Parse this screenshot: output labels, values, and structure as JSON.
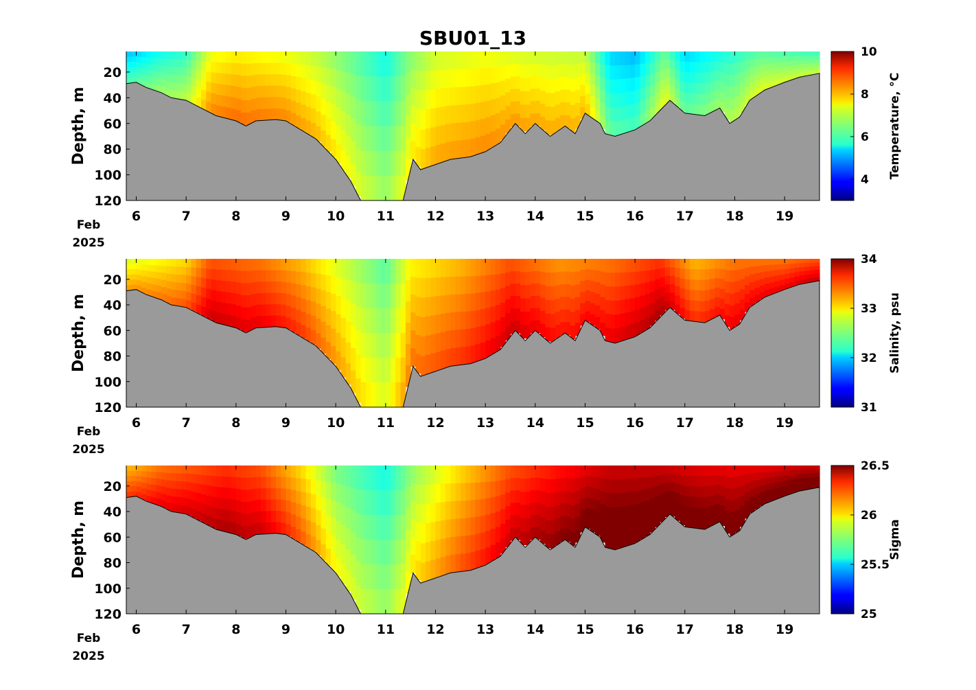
{
  "title": "SBU01_13",
  "colors": {
    "bathymetry": "#9a9a9a",
    "colormap": "jet",
    "gap": "#ffffff"
  },
  "date_label": {
    "month": "Feb",
    "year": "2025"
  },
  "chart_data": [
    {
      "type": "heatmap",
      "variable": "temperature",
      "ylabel": "Depth, m",
      "colorbar_label": "Temperature, °C",
      "x_ticks": [
        "6",
        "7",
        "8",
        "9",
        "10",
        "11",
        "12",
        "13",
        "14",
        "15",
        "16",
        "17",
        "18",
        "19"
      ],
      "y_ticks": [
        "20",
        "40",
        "60",
        "80",
        "100",
        "120"
      ],
      "colorbar_ticks": [
        "4",
        "6",
        "8",
        "10"
      ],
      "xlim": [
        5.8,
        19.7
      ],
      "ylim": [
        120,
        4
      ],
      "clim": [
        3,
        10
      ],
      "data_bins": [
        {
          "day": 5.9,
          "value": 5.3
        },
        {
          "day": 6.5,
          "value": 5.8
        },
        {
          "day": 7.0,
          "value": 6.0
        },
        {
          "day": 7.5,
          "value": 7.3
        },
        {
          "day": 8.0,
          "value": 7.5
        },
        {
          "day": 9.0,
          "value": 7.3
        },
        {
          "day": 9.6,
          "value": 7.0
        },
        {
          "day": 10.3,
          "value": 6.4
        },
        {
          "day": 11.0,
          "value": 5.8
        },
        {
          "day": 11.5,
          "value": 6.6
        },
        {
          "day": 12.0,
          "value": 7.1
        },
        {
          "day": 13.0,
          "value": 7.3
        },
        {
          "day": 14.0,
          "value": 7.1
        },
        {
          "day": 15.0,
          "value": 7.0
        },
        {
          "day": 15.5,
          "value": 5.4
        },
        {
          "day": 16.0,
          "value": 5.2
        },
        {
          "day": 16.6,
          "value": 6.4
        },
        {
          "day": 17.0,
          "value": 5.4
        },
        {
          "day": 17.5,
          "value": 5.7
        },
        {
          "day": 18.5,
          "value": 6.3
        },
        {
          "day": 19.5,
          "value": 6.1
        }
      ]
    },
    {
      "type": "heatmap",
      "variable": "salinity",
      "ylabel": "Depth, m",
      "colorbar_label": "Salinity, psu",
      "x_ticks": [
        "6",
        "7",
        "8",
        "9",
        "10",
        "11",
        "12",
        "13",
        "14",
        "15",
        "16",
        "17",
        "18",
        "19"
      ],
      "y_ticks": [
        "20",
        "40",
        "60",
        "80",
        "100",
        "120"
      ],
      "colorbar_ticks": [
        "31",
        "32",
        "33",
        "34"
      ],
      "xlim": [
        5.8,
        19.7
      ],
      "ylim": [
        120,
        4
      ],
      "clim": [
        31,
        34
      ],
      "data_bins": [
        {
          "day": 5.9,
          "value": 32.8
        },
        {
          "day": 6.5,
          "value": 32.9
        },
        {
          "day": 7.0,
          "value": 33.0
        },
        {
          "day": 7.5,
          "value": 33.4
        },
        {
          "day": 8.5,
          "value": 33.3
        },
        {
          "day": 9.3,
          "value": 33.1
        },
        {
          "day": 10.0,
          "value": 32.8
        },
        {
          "day": 11.0,
          "value": 32.4
        },
        {
          "day": 11.5,
          "value": 32.9
        },
        {
          "day": 12.5,
          "value": 33.1
        },
        {
          "day": 13.5,
          "value": 33.4
        },
        {
          "day": 14.5,
          "value": 33.2
        },
        {
          "day": 15.5,
          "value": 33.3
        },
        {
          "day": 16.5,
          "value": 33.5
        },
        {
          "day": 17.2,
          "value": 33.1
        },
        {
          "day": 18.0,
          "value": 33.3
        },
        {
          "day": 19.0,
          "value": 33.3
        },
        {
          "day": 19.6,
          "value": 33.4
        }
      ]
    },
    {
      "type": "heatmap",
      "variable": "sigma",
      "ylabel": "Depth, m",
      "colorbar_label": "Sigma",
      "x_ticks": [
        "6",
        "7",
        "8",
        "9",
        "10",
        "11",
        "12",
        "13",
        "14",
        "15",
        "16",
        "17",
        "18",
        "19"
      ],
      "y_ticks": [
        "20",
        "40",
        "60",
        "80",
        "100",
        "120"
      ],
      "colorbar_ticks": [
        "25",
        "25.5",
        "26",
        "26.5"
      ],
      "xlim": [
        5.8,
        19.7
      ],
      "ylim": [
        120,
        4
      ],
      "clim": [
        25,
        26.5
      ],
      "data_bins": [
        {
          "day": 5.9,
          "value": 26.05
        },
        {
          "day": 6.5,
          "value": 26.15
        },
        {
          "day": 7.2,
          "value": 26.2
        },
        {
          "day": 7.8,
          "value": 26.25
        },
        {
          "day": 8.5,
          "value": 26.2
        },
        {
          "day": 9.3,
          "value": 26.0
        },
        {
          "day": 10.0,
          "value": 25.75
        },
        {
          "day": 11.0,
          "value": 25.6
        },
        {
          "day": 11.6,
          "value": 25.8
        },
        {
          "day": 12.5,
          "value": 26.0
        },
        {
          "day": 13.5,
          "value": 26.2
        },
        {
          "day": 14.5,
          "value": 26.3
        },
        {
          "day": 15.5,
          "value": 26.4
        },
        {
          "day": 16.5,
          "value": 26.4
        },
        {
          "day": 17.5,
          "value": 26.35
        },
        {
          "day": 18.5,
          "value": 26.35
        },
        {
          "day": 19.5,
          "value": 26.4
        }
      ]
    }
  ],
  "bathymetry_profile": [
    [
      5.8,
      29
    ],
    [
      6.0,
      28
    ],
    [
      6.2,
      32
    ],
    [
      6.5,
      36
    ],
    [
      6.7,
      40
    ],
    [
      7.0,
      42
    ],
    [
      7.3,
      48
    ],
    [
      7.6,
      54
    ],
    [
      8.0,
      58
    ],
    [
      8.2,
      62
    ],
    [
      8.4,
      58
    ],
    [
      8.8,
      57
    ],
    [
      9.0,
      58
    ],
    [
      9.3,
      65
    ],
    [
      9.6,
      72
    ],
    [
      10.0,
      88
    ],
    [
      10.3,
      105
    ],
    [
      10.5,
      120
    ],
    [
      11.35,
      120
    ],
    [
      11.55,
      88
    ],
    [
      11.7,
      96
    ],
    [
      12.0,
      92
    ],
    [
      12.3,
      88
    ],
    [
      12.7,
      86
    ],
    [
      13.0,
      82
    ],
    [
      13.3,
      75
    ],
    [
      13.6,
      60
    ],
    [
      13.8,
      68
    ],
    [
      14.0,
      60
    ],
    [
      14.3,
      70
    ],
    [
      14.6,
      62
    ],
    [
      14.8,
      68
    ],
    [
      15.0,
      52
    ],
    [
      15.3,
      60
    ],
    [
      15.4,
      68
    ],
    [
      15.6,
      70
    ],
    [
      16.0,
      65
    ],
    [
      16.3,
      58
    ],
    [
      16.7,
      42
    ],
    [
      17.0,
      52
    ],
    [
      17.4,
      54
    ],
    [
      17.7,
      48
    ],
    [
      17.9,
      60
    ],
    [
      18.1,
      55
    ],
    [
      18.3,
      42
    ],
    [
      18.6,
      34
    ],
    [
      19.0,
      28
    ],
    [
      19.3,
      24
    ],
    [
      19.7,
      21
    ]
  ]
}
